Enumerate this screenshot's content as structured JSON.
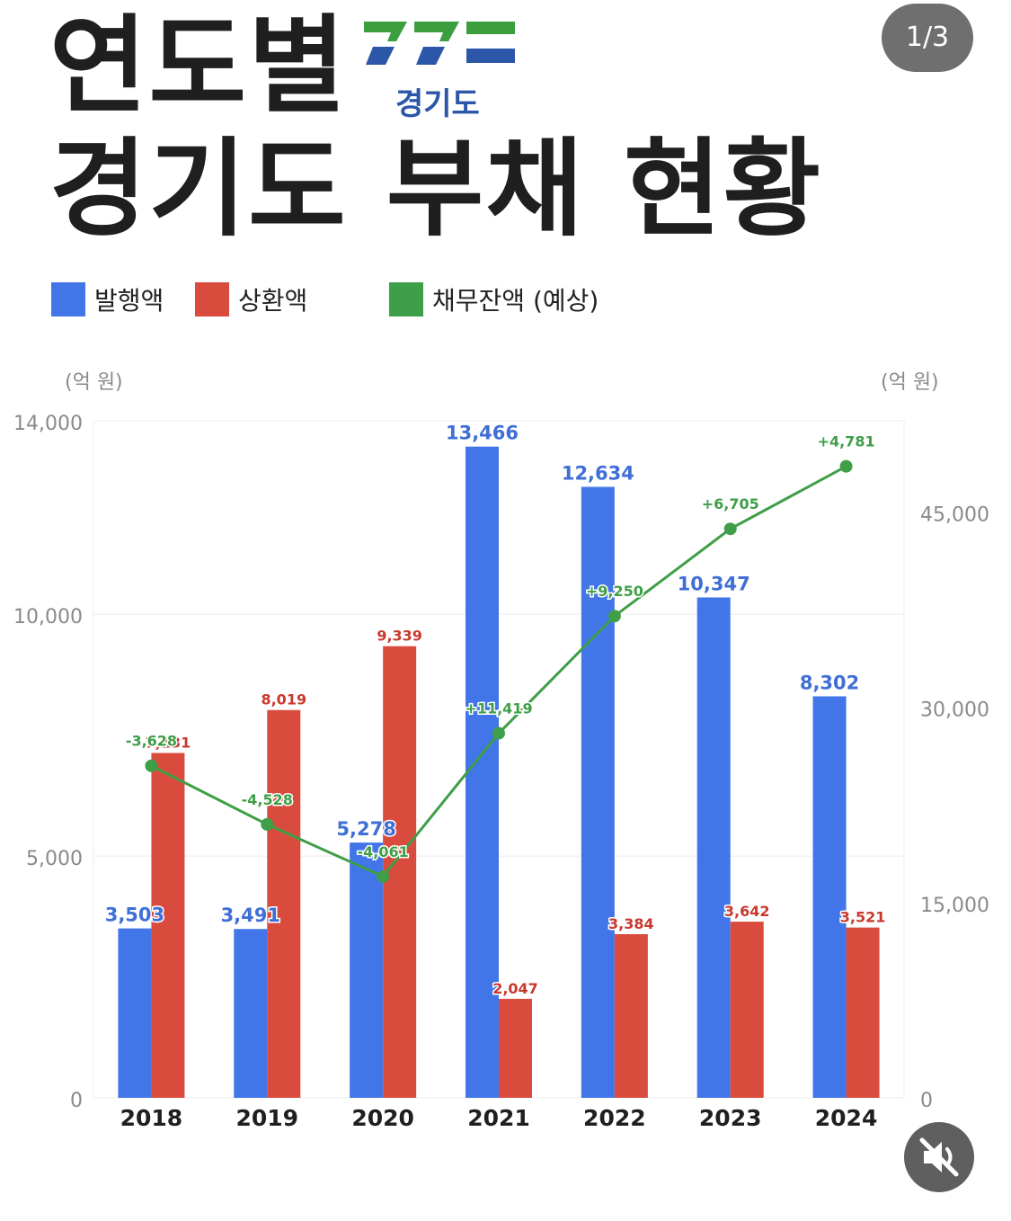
{
  "header": {
    "title_line1": "연도별",
    "title_line2": "경기도 부채 현황",
    "logo_text": "경기도",
    "page_indicator": "1/3"
  },
  "legend": [
    {
      "label": "발행액",
      "color": "#4175e8"
    },
    {
      "label": "상환액",
      "color": "#d94b3d"
    },
    {
      "label": "채무잔액 (예상)",
      "color": "#3f9e48"
    }
  ],
  "chart_data": {
    "type": "bar",
    "categories": [
      "2018",
      "2019",
      "2020",
      "2021",
      "2022",
      "2023",
      "2024"
    ],
    "series": [
      {
        "name": "발행액",
        "type": "bar",
        "axis": "left",
        "color": "#4175e8",
        "values": [
          3503,
          3491,
          5278,
          13466,
          12634,
          10347,
          8302
        ],
        "labels": [
          "3,503",
          "3,491",
          "5,278",
          "13,466",
          "12,634",
          "10,347",
          "8,302"
        ]
      },
      {
        "name": "상환액",
        "type": "bar",
        "axis": "left",
        "color": "#d94b3d",
        "values": [
          7131,
          8019,
          9339,
          2047,
          3384,
          3642,
          3521
        ],
        "labels": [
          "7,131",
          "8,019",
          "9,339",
          "2,047",
          "3,384",
          "3,642",
          "3,521"
        ]
      },
      {
        "name": "채무잔액 (예상)",
        "type": "line",
        "axis": "right",
        "color": "#3f9e48",
        "values": [
          25500,
          21000,
          17000,
          28000,
          37000,
          43700,
          48500
        ],
        "labels": [
          "-3,628",
          "-4,528",
          "-4,061",
          "+11,419",
          "+9,250",
          "+6,705",
          "+4,781"
        ]
      }
    ],
    "y_left": {
      "label": "(억 원)",
      "ticks": [
        0,
        5000,
        10000,
        14000
      ],
      "tick_labels": [
        "0",
        "5,000",
        "10,000",
        "14,000"
      ],
      "range": [
        0,
        14000
      ]
    },
    "y_right": {
      "label": "(억 원)",
      "ticks": [
        0,
        15000,
        30000,
        45000
      ],
      "tick_labels": [
        "0",
        "15,000",
        "30,000",
        "45,000"
      ],
      "range": [
        0,
        52000
      ]
    },
    "grid": true,
    "legend_position": "top"
  },
  "controls": {
    "mute_icon": "speaker-muted-icon"
  }
}
